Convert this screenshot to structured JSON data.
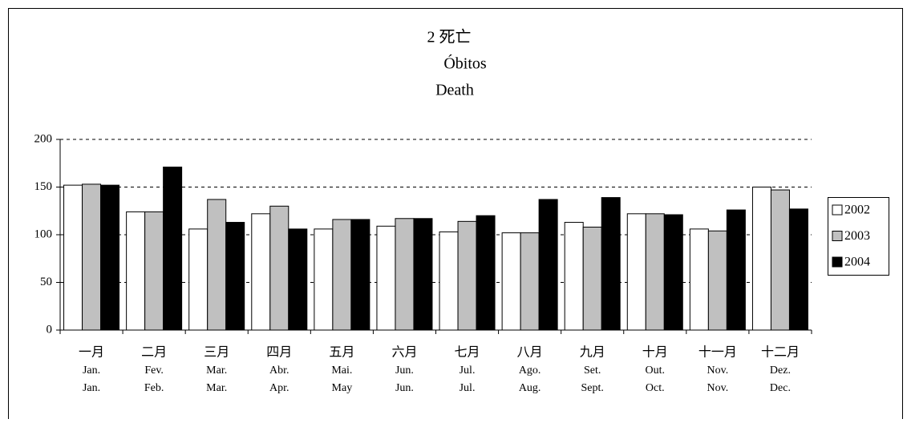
{
  "chart_data": {
    "type": "bar",
    "title": [
      "2 死亡",
      "Óbitos",
      "Death"
    ],
    "categories": [
      [
        "一月",
        "Jan.",
        "Jan."
      ],
      [
        "二月",
        "Fev.",
        "Feb."
      ],
      [
        "三月",
        "Mar.",
        "Mar."
      ],
      [
        "四月",
        "Abr.",
        "Apr."
      ],
      [
        "五月",
        "Mai.",
        "May"
      ],
      [
        "六月",
        "Jun.",
        "Jun."
      ],
      [
        "七月",
        "Jul.",
        "Jul."
      ],
      [
        "八月",
        "Ago.",
        "Aug."
      ],
      [
        "九月",
        "Set.",
        "Sept."
      ],
      [
        "十月",
        "Out.",
        "Oct."
      ],
      [
        "十一月",
        "Nov.",
        "Nov."
      ],
      [
        "十二月",
        "Dez.",
        "Dec."
      ]
    ],
    "series": [
      {
        "name": "2002",
        "color": "#ffffff",
        "values": [
          152,
          124,
          106,
          122,
          106,
          109,
          103,
          102,
          113,
          122,
          106,
          150
        ]
      },
      {
        "name": "2003",
        "color": "#c0c0c0",
        "values": [
          153,
          124,
          137,
          130,
          116,
          117,
          114,
          102,
          108,
          122,
          104,
          147
        ]
      },
      {
        "name": "2004",
        "color": "#000000",
        "values": [
          152,
          171,
          113,
          106,
          116,
          117,
          120,
          137,
          139,
          121,
          126,
          127
        ]
      }
    ],
    "ylim": [
      0,
      200
    ],
    "yticks": [
      0,
      50,
      100,
      150,
      200
    ],
    "grid": true,
    "legend": "right"
  }
}
